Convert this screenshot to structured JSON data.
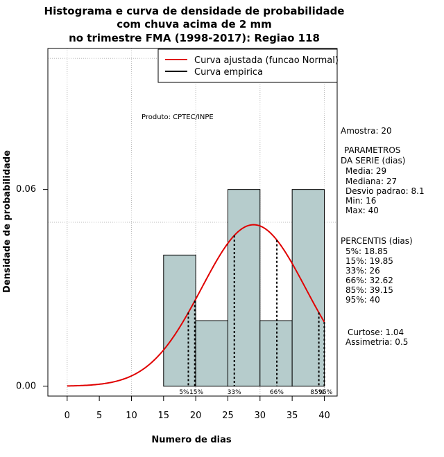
{
  "chart_data": {
    "type": "bar",
    "title": [
      "Histograma e curva de densidade de probabilidade",
      "com chuva acima de 2 mm",
      "no trimestre FMA (1998-2017): Regiao 118"
    ],
    "xlabel": "Numero de dias",
    "ylabel": "Densidade de probabilidade",
    "xlim": [
      -3,
      42
    ],
    "ylim": [
      -0.003,
      0.103
    ],
    "x_ticks": [
      0,
      5,
      10,
      15,
      20,
      25,
      30,
      35,
      40
    ],
    "x_tick_labels": [
      "0",
      "5",
      "10",
      "15",
      "20",
      "25",
      "30",
      "35",
      "40"
    ],
    "y_ticks": [
      0.0,
      0.06
    ],
    "y_tick_labels": [
      "0.00",
      "0.06"
    ],
    "grid_x": [
      0,
      10,
      20,
      30,
      40
    ],
    "grid_y": [
      0.05,
      0.1
    ],
    "bins": [
      [
        15,
        20
      ],
      [
        20,
        25
      ],
      [
        25,
        30
      ],
      [
        30,
        35
      ],
      [
        35,
        40
      ]
    ],
    "values": [
      0.04,
      0.02,
      0.06,
      0.02,
      0.06
    ],
    "bar_color": "#b6cccc",
    "fit": {
      "name": "Curva ajustada (funcao Normal)",
      "distribution": "normal",
      "mean": 29,
      "sd": 8.1,
      "x_range": [
        0,
        40
      ],
      "color": "#e00000"
    },
    "empirical": {
      "name": "Curva empirica",
      "color": "#000000"
    },
    "legend_position": "top-right",
    "percentile_lines": [
      {
        "label": "5%",
        "x": 18.85,
        "label_x": 18.2
      },
      {
        "label": "15%",
        "x": 19.85,
        "label_x": 20.1
      },
      {
        "label": "33%",
        "x": 26,
        "label_x": 26
      },
      {
        "label": "66%",
        "x": 32.62,
        "label_x": 32.6
      },
      {
        "label": "85%",
        "x": 39.15,
        "label_x": 38.9
      },
      {
        "label": "95%",
        "x": 40,
        "label_x": 40.2
      }
    ]
  },
  "product_label": "Produto: CPTEC/INPE",
  "stats": {
    "amostra": "Amostra: 20",
    "param_title_1": "PARAMETROS",
    "param_title_2": "DA SERIE (dias)",
    "media": "Media: 29",
    "mediana": "Mediana: 27",
    "desvio": "Desvio padrao: 8.1",
    "min": "Min: 16",
    "max": "Max: 40",
    "percentis_title": "PERCENTIS (dias)",
    "p5": "5%: 18.85",
    "p15": "15%: 19.85",
    "p33": "33%: 26",
    "p66": "66%: 32.62",
    "p85": "85%: 39.15",
    "p95": "95%: 40",
    "curtose": "Curtose: 1.04",
    "assimetria": "Assimetria: 0.5"
  }
}
